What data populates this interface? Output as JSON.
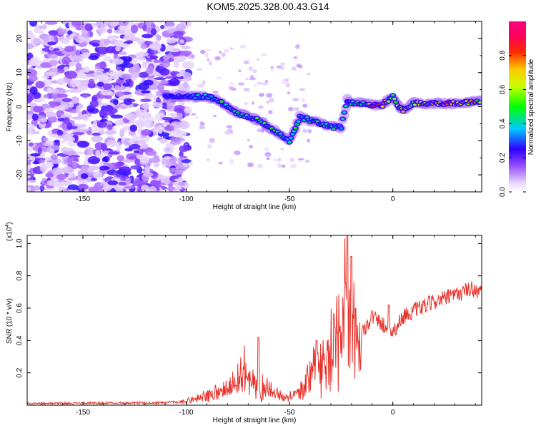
{
  "title": "KOM5.2025.328.00.43.G14",
  "colors": {
    "snr_line": "#e8312a",
    "axis": "#000000",
    "spectrogram_low": "#c8a8ff",
    "spectrogram_mid": "#6a00e0"
  },
  "chart_data": [
    {
      "type": "heatmap",
      "name": "spectrogram",
      "xlabel": "Height of straight line (km)",
      "ylabel": "Frequency (Hz)",
      "xlim": [
        -177,
        43
      ],
      "ylim": [
        -25,
        25
      ],
      "xticks": [
        -150,
        -100,
        -50,
        0
      ],
      "xtick_labels": [
        "-150",
        "-100",
        "-50",
        "0"
      ],
      "yticks": [
        -20,
        -10,
        0,
        10,
        20
      ],
      "ytick_labels": [
        "-20",
        "-10",
        "0",
        "10",
        "20"
      ],
      "colorbar": {
        "label": "Normalized spectral amplitude",
        "range": [
          0,
          1
        ],
        "ticks": [
          0.0,
          0.2,
          0.4,
          0.6,
          0.8
        ],
        "tick_labels": [
          "0.0",
          "0.2",
          "0.4",
          "0.6",
          "0.8"
        ]
      },
      "trace": {
        "x": [
          -110,
          -100,
          -95,
          -90,
          -85,
          -80,
          -75,
          -70,
          -65,
          -60,
          -55,
          -50,
          -45,
          -40,
          -35,
          -30,
          -25,
          -22,
          -20,
          -15,
          -10,
          -5,
          0,
          3,
          5,
          10,
          20,
          30,
          43
        ],
        "y": [
          3,
          3,
          3,
          3,
          2,
          0,
          -2,
          -3,
          -4,
          -6,
          -8,
          -10,
          -3,
          -4,
          -5,
          -6,
          -6,
          2,
          1,
          1,
          0.5,
          0.5,
          3,
          0,
          -1,
          1,
          1,
          1,
          1.5
        ],
        "amplitude": [
          0.3,
          0.35,
          0.4,
          0.42,
          0.45,
          0.45,
          0.45,
          0.48,
          0.48,
          0.45,
          0.45,
          0.5,
          0.42,
          0.45,
          0.48,
          0.45,
          0.4,
          0.4,
          0.45,
          0.5,
          0.9,
          0.85,
          0.55,
          0.6,
          0.8,
          0.55,
          0.8,
          0.85,
          0.6
        ]
      }
    },
    {
      "type": "line",
      "name": "snr",
      "xlabel": "Height of straight line (km)",
      "ylabel": "SNR (10 * v/v)",
      "y_multiplier": "(x10",
      "y_exponent": "4",
      "xlim": [
        -177,
        43
      ],
      "ylim": [
        0,
        1.05
      ],
      "xticks": [
        -150,
        -100,
        -50,
        0
      ],
      "xtick_labels": [
        "-150",
        "-100",
        "-50",
        "0"
      ],
      "yticks": [
        0.2,
        0.4,
        0.6,
        0.8,
        1.0
      ],
      "ytick_labels": [
        "0.2",
        "0.4",
        "0.6",
        "0.8",
        "1.0"
      ],
      "envelope": {
        "x": [
          -177,
          -110,
          -100,
          -95,
          -90,
          -80,
          -72,
          -68,
          -60,
          -55,
          -50,
          -45,
          -40,
          -35,
          -30,
          -25,
          -23,
          -21,
          -19,
          -15,
          -10,
          -5,
          0,
          5,
          10,
          20,
          30,
          38,
          43
        ],
        "y": [
          0.015,
          0.02,
          0.03,
          0.06,
          0.08,
          0.12,
          0.28,
          0.2,
          0.12,
          0.08,
          0.06,
          0.12,
          0.25,
          0.35,
          0.45,
          0.55,
          0.95,
          0.75,
          0.65,
          0.45,
          0.55,
          0.5,
          0.45,
          0.55,
          0.58,
          0.64,
          0.68,
          0.72,
          0.7
        ]
      },
      "peaks": [
        {
          "x": -65,
          "y": 0.42
        },
        {
          "x": -37,
          "y": 0.4
        },
        {
          "x": -28,
          "y": 0.48
        },
        {
          "x": -22,
          "y": 1.05
        },
        {
          "x": -20,
          "y": 0.92
        },
        {
          "x": -18,
          "y": 0.6
        },
        {
          "x": -2,
          "y": 0.62
        }
      ],
      "noise_amplitude": 0.04,
      "n_points": 900
    }
  ]
}
